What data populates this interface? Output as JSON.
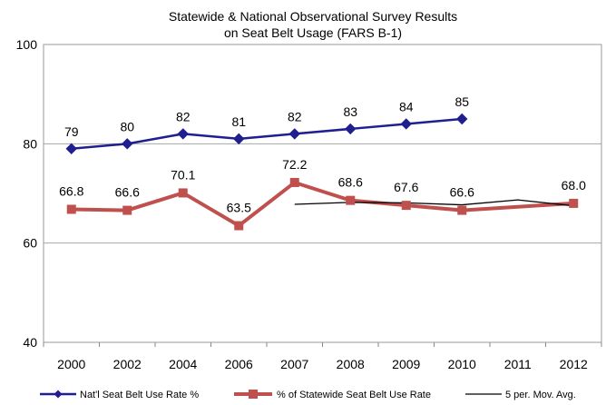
{
  "chart_data": {
    "type": "line",
    "title": "Statewide & National Observational Survey Results",
    "subtitle": "on Seat Belt Usage (FARS B-1)",
    "categories": [
      "2000",
      "2002",
      "2004",
      "2006",
      "2007",
      "2008",
      "2009",
      "2010",
      "2011",
      "2012"
    ],
    "ylim": [
      40,
      100
    ],
    "yticks": [
      40,
      60,
      80,
      100
    ],
    "grid": true,
    "legend_position": "bottom",
    "series": [
      {
        "name": "Nat'l Seat Belt Use Rate %",
        "marker": "diamond",
        "color": "#1f1f8f",
        "values": [
          79,
          80,
          82,
          81,
          82,
          83,
          84,
          85,
          null,
          null
        ],
        "labels": [
          "79",
          "80",
          "82",
          "81",
          "82",
          "83",
          "84",
          "85",
          "",
          ""
        ]
      },
      {
        "name": "% of Statewide Seat Belt Use Rate",
        "marker": "square",
        "color": "#c0504d",
        "values": [
          66.8,
          66.6,
          70.1,
          63.5,
          72.2,
          68.6,
          67.6,
          66.6,
          null,
          68.0
        ],
        "labels": [
          "66.8",
          "66.6",
          "70.1",
          "63.5",
          "72.2",
          "68.6",
          "67.6",
          "66.6",
          "",
          "68.0"
        ]
      },
      {
        "name": "5 per. Mov. Avg.",
        "marker": "none",
        "color": "#000000",
        "values": [
          null,
          null,
          null,
          null,
          67.8,
          68.2,
          68.1,
          67.7,
          68.7,
          67.5
        ]
      }
    ]
  }
}
